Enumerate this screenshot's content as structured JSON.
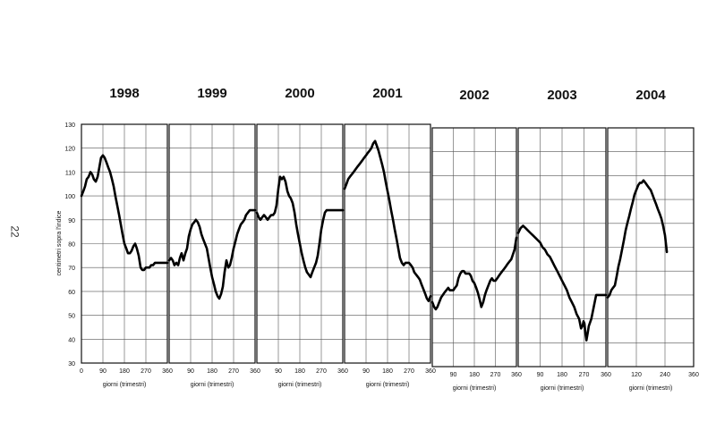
{
  "page_number": "22",
  "ylabel": "centimetri sopra l'indice",
  "y_ticks": [
    30,
    40,
    50,
    60,
    70,
    80,
    90,
    100,
    110,
    120,
    130
  ],
  "chart_data": [
    {
      "type": "line",
      "year": "1998",
      "xlabel": "giorni (trimestri)",
      "xlim": [
        0,
        360
      ],
      "ylim": [
        30,
        130
      ],
      "x_ticks": [
        0,
        90,
        180,
        270,
        360
      ],
      "x_tick_labels": [
        "0",
        "90",
        "180",
        "270",
        "360"
      ],
      "series": [
        {
          "x": [
            0,
            8,
            15,
            22,
            30,
            38,
            45,
            52,
            60,
            68,
            75,
            82,
            90,
            97,
            105,
            112,
            120,
            128,
            135,
            142,
            150,
            158,
            165,
            172,
            180,
            188,
            195,
            203,
            210,
            218,
            225,
            232,
            240,
            248,
            255,
            262,
            270,
            278,
            285,
            292,
            300,
            308,
            315,
            322,
            330,
            338,
            345,
            352,
            360
          ],
          "y": [
            100,
            102,
            104,
            107,
            108,
            110,
            109,
            107,
            106,
            108,
            112,
            116,
            117,
            116,
            114,
            112,
            110,
            107,
            104,
            100,
            96,
            92,
            88,
            84,
            80,
            78,
            76,
            76,
            77,
            79,
            80,
            78,
            75,
            70,
            69,
            69,
            70,
            70,
            70,
            71,
            71,
            72,
            72,
            72,
            72,
            72,
            72,
            72,
            72
          ]
        }
      ]
    },
    {
      "type": "line",
      "year": "1999",
      "xlabel": "giorni (trimestri)",
      "xlim": [
        0,
        360
      ],
      "ylim": [
        30,
        130
      ],
      "x_ticks": [
        90,
        180,
        270,
        360
      ],
      "x_tick_labels": [
        "90",
        "180",
        "270",
        "360"
      ],
      "series": [
        {
          "x": [
            0,
            8,
            15,
            22,
            30,
            38,
            45,
            52,
            60,
            68,
            75,
            82,
            90,
            97,
            105,
            112,
            120,
            128,
            135,
            142,
            150,
            158,
            165,
            172,
            180,
            188,
            195,
            203,
            210,
            218,
            225,
            232,
            240,
            248,
            255,
            262,
            270,
            278,
            285,
            292,
            300,
            308,
            315,
            322,
            330,
            338,
            345,
            352,
            360
          ],
          "y": [
            73,
            74,
            73,
            71,
            72,
            71,
            74,
            76,
            73,
            76,
            78,
            83,
            86,
            88,
            89,
            90,
            89,
            87,
            84,
            82,
            80,
            78,
            74,
            70,
            66,
            63,
            60,
            58,
            57,
            59,
            62,
            68,
            73,
            70,
            71,
            74,
            78,
            81,
            84,
            86,
            88,
            89,
            90,
            92,
            93,
            94,
            94,
            94,
            94
          ]
        }
      ]
    },
    {
      "type": "line",
      "year": "2000",
      "xlabel": "giorni (trimestri)",
      "xlim": [
        0,
        360
      ],
      "ylim": [
        30,
        130
      ],
      "x_ticks": [
        90,
        180,
        270,
        360
      ],
      "x_tick_labels": [
        "90",
        "180",
        "270",
        "360"
      ],
      "series": [
        {
          "x": [
            0,
            8,
            15,
            22,
            30,
            38,
            45,
            52,
            60,
            68,
            75,
            82,
            90,
            97,
            105,
            112,
            120,
            128,
            135,
            142,
            150,
            158,
            165,
            172,
            180,
            188,
            195,
            203,
            210,
            218,
            225,
            232,
            240,
            248,
            255,
            262,
            270,
            278,
            285,
            292,
            300,
            308,
            315,
            322,
            330,
            338,
            345,
            352,
            360
          ],
          "y": [
            93,
            91,
            90,
            91,
            92,
            91,
            90,
            91,
            92,
            92,
            93,
            96,
            103,
            108,
            107,
            108,
            106,
            102,
            100,
            99,
            97,
            93,
            88,
            84,
            80,
            76,
            73,
            70,
            68,
            67,
            66,
            68,
            70,
            72,
            75,
            80,
            86,
            90,
            93,
            94,
            94,
            94,
            94,
            94,
            94,
            94,
            94,
            94,
            94
          ]
        }
      ]
    },
    {
      "type": "line",
      "year": "2001",
      "xlabel": "giorni (trimestri)",
      "xlim": [
        0,
        360
      ],
      "ylim": [
        30,
        130
      ],
      "x_ticks": [
        90,
        180,
        270,
        360
      ],
      "x_tick_labels": [
        "90",
        "180",
        "270",
        "360"
      ],
      "series": [
        {
          "x": [
            0,
            8,
            15,
            22,
            30,
            38,
            45,
            52,
            60,
            68,
            75,
            82,
            90,
            97,
            105,
            112,
            120,
            128,
            135,
            142,
            150,
            158,
            165,
            172,
            180,
            188,
            195,
            203,
            210,
            218,
            225,
            232,
            240,
            248,
            255,
            262,
            270,
            278,
            285,
            292,
            300,
            308,
            315,
            322,
            330,
            338,
            345,
            352,
            360
          ],
          "y": [
            103,
            105,
            107,
            108,
            109,
            110,
            111,
            112,
            113,
            114,
            115,
            116,
            117,
            118,
            119,
            120,
            122,
            123,
            121,
            119,
            116,
            113,
            110,
            106,
            102,
            98,
            94,
            90,
            86,
            82,
            78,
            74,
            72,
            71,
            72,
            72,
            72,
            71,
            70,
            68,
            67,
            66,
            65,
            63,
            61,
            59,
            57,
            56,
            58
          ]
        }
      ]
    },
    {
      "type": "line",
      "year": "2002",
      "xlabel": "giorni (trimestri)",
      "xlim": [
        0,
        360
      ],
      "ylim": [
        30,
        130
      ],
      "x_ticks": [
        90,
        180,
        270,
        360
      ],
      "x_tick_labels": [
        "90",
        "180",
        "270",
        "360"
      ],
      "series": [
        {
          "x": [
            0,
            8,
            15,
            22,
            30,
            38,
            45,
            52,
            60,
            68,
            75,
            82,
            90,
            97,
            105,
            112,
            120,
            128,
            135,
            142,
            150,
            158,
            165,
            172,
            180,
            188,
            195,
            203,
            210,
            218,
            225,
            232,
            240,
            248,
            255,
            262,
            270,
            278,
            285,
            292,
            300,
            308,
            315,
            322,
            330,
            338,
            345,
            352,
            360
          ],
          "y": [
            57,
            55,
            54,
            55,
            57,
            59,
            60,
            61,
            62,
            63,
            62,
            62,
            62,
            63,
            64,
            67,
            69,
            70,
            70,
            69,
            69,
            69,
            68,
            66,
            65,
            63,
            61,
            58,
            55,
            57,
            60,
            62,
            64,
            66,
            67,
            66,
            66,
            67,
            68,
            69,
            70,
            71,
            72,
            73,
            74,
            75,
            77,
            79,
            84
          ]
        }
      ]
    },
    {
      "type": "line",
      "year": "2003",
      "xlabel": "giorni (trimestri)",
      "xlim": [
        0,
        360
      ],
      "ylim": [
        30,
        130
      ],
      "x_ticks": [
        90,
        180,
        270,
        360
      ],
      "x_tick_labels": [
        "90",
        "180",
        "270",
        "360"
      ],
      "series": [
        {
          "x": [
            0,
            10,
            20,
            30,
            40,
            50,
            60,
            70,
            80,
            90,
            100,
            110,
            120,
            130,
            140,
            150,
            160,
            170,
            180,
            190,
            200,
            210,
            220,
            230,
            240,
            250,
            258,
            264,
            268,
            272,
            276,
            280,
            285,
            290,
            300,
            310,
            320,
            330,
            340,
            350,
            360
          ],
          "y": [
            86,
            88,
            89,
            88,
            87,
            86,
            85,
            84,
            83,
            82,
            80,
            79,
            77,
            76,
            74,
            72,
            70,
            68,
            66,
            64,
            62,
            59,
            57,
            55,
            52,
            50,
            46,
            47,
            49,
            48,
            44,
            41,
            44,
            47,
            50,
            55,
            60,
            60,
            60,
            60,
            60
          ]
        }
      ]
    },
    {
      "type": "line",
      "year": "2004",
      "xlabel": "giorni (trimestri)",
      "xlim": [
        0,
        360
      ],
      "ylim": [
        30,
        130
      ],
      "x_ticks": [
        0,
        120,
        240,
        360
      ],
      "x_tick_labels": [
        "",
        "120",
        "240",
        "360"
      ],
      "series": [
        {
          "x": [
            0,
            8,
            15,
            22,
            30,
            38,
            45,
            52,
            60,
            68,
            75,
            82,
            90,
            97,
            105,
            112,
            120,
            128,
            135,
            142,
            150,
            158,
            165,
            172,
            180,
            188,
            195,
            203,
            210,
            218,
            225,
            232,
            240,
            248
          ],
          "y": [
            59,
            60,
            62,
            63,
            64,
            68,
            72,
            75,
            79,
            83,
            87,
            90,
            93,
            96,
            99,
            102,
            104,
            106,
            107,
            107,
            108,
            107,
            106,
            105,
            104,
            102,
            100,
            98,
            96,
            94,
            92,
            89,
            85,
            78
          ]
        }
      ]
    }
  ]
}
